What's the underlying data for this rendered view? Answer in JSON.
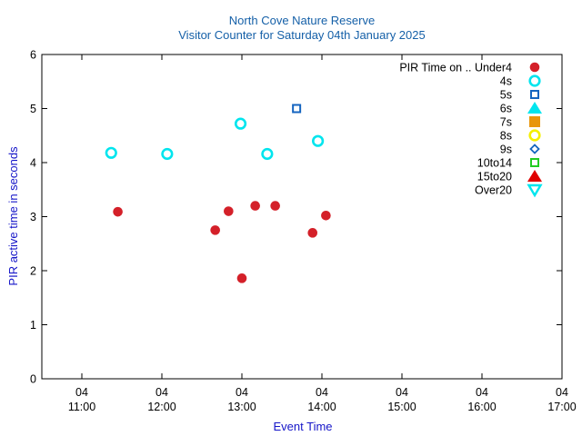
{
  "chart_data": {
    "type": "scatter",
    "title": "North Cove Nature Reserve",
    "subtitle": "Visitor Counter for Saturday 04th January 2025",
    "xlabel": "Event Time",
    "ylabel": "PIR active time in seconds",
    "xlim": [
      "10:30",
      "17:00"
    ],
    "ylim": [
      0,
      6
    ],
    "x_ticks": [
      {
        "time": "11:00",
        "day": "04",
        "label": "11:00"
      },
      {
        "time": "12:00",
        "day": "04",
        "label": "12:00"
      },
      {
        "time": "13:00",
        "day": "04",
        "label": "13:00"
      },
      {
        "time": "14:00",
        "day": "04",
        "label": "14:00"
      },
      {
        "time": "15:00",
        "day": "04",
        "label": "15:00"
      },
      {
        "time": "16:00",
        "day": "04",
        "label": "16:00"
      },
      {
        "time": "17:00",
        "day": "04",
        "label": "17:00"
      }
    ],
    "y_ticks": [
      "0",
      "1",
      "2",
      "3",
      "4",
      "5",
      "6"
    ],
    "grid": false,
    "legend_position": "top-right",
    "legend_title": "PIR Time on .. ",
    "series": [
      {
        "name": "Under4",
        "marker": "filled-circle",
        "color": "#d42029",
        "points": [
          {
            "x": "11:27",
            "y": 3.09
          },
          {
            "x": "12:40",
            "y": 2.75
          },
          {
            "x": "12:50",
            "y": 3.1
          },
          {
            "x": "13:00",
            "y": 1.86
          },
          {
            "x": "13:10",
            "y": 3.2
          },
          {
            "x": "13:25",
            "y": 3.2
          },
          {
            "x": "13:53",
            "y": 2.7
          },
          {
            "x": "14:03",
            "y": 3.02
          }
        ]
      },
      {
        "name": "4s",
        "marker": "open-circle",
        "color": "#00e5ee",
        "points": [
          {
            "x": "11:22",
            "y": 4.18
          },
          {
            "x": "12:04",
            "y": 4.16
          },
          {
            "x": "12:59",
            "y": 4.72
          },
          {
            "x": "13:19",
            "y": 4.16
          },
          {
            "x": "13:57",
            "y": 4.4
          }
        ]
      },
      {
        "name": "5s",
        "marker": "open-square",
        "color": "#1565c0",
        "points": [
          {
            "x": "13:41",
            "y": 5.0
          }
        ]
      },
      {
        "name": "6s",
        "marker": "filled-triangle-up",
        "color": "#00e5ee",
        "points": []
      },
      {
        "name": "7s",
        "marker": "filled-square",
        "color": "#e8960c",
        "points": []
      },
      {
        "name": "8s",
        "marker": "open-circle",
        "color": "#f4ef00",
        "points": []
      },
      {
        "name": "9s",
        "marker": "open-diamond",
        "color": "#1565c0",
        "points": []
      },
      {
        "name": "10to14",
        "marker": "open-square",
        "color": "#22cc22",
        "points": []
      },
      {
        "name": "15to20",
        "marker": "filled-triangle-up",
        "color": "#e00000",
        "points": []
      },
      {
        "name": "Over20",
        "marker": "open-triangle-down",
        "color": "#00e5ee",
        "points": []
      }
    ]
  }
}
